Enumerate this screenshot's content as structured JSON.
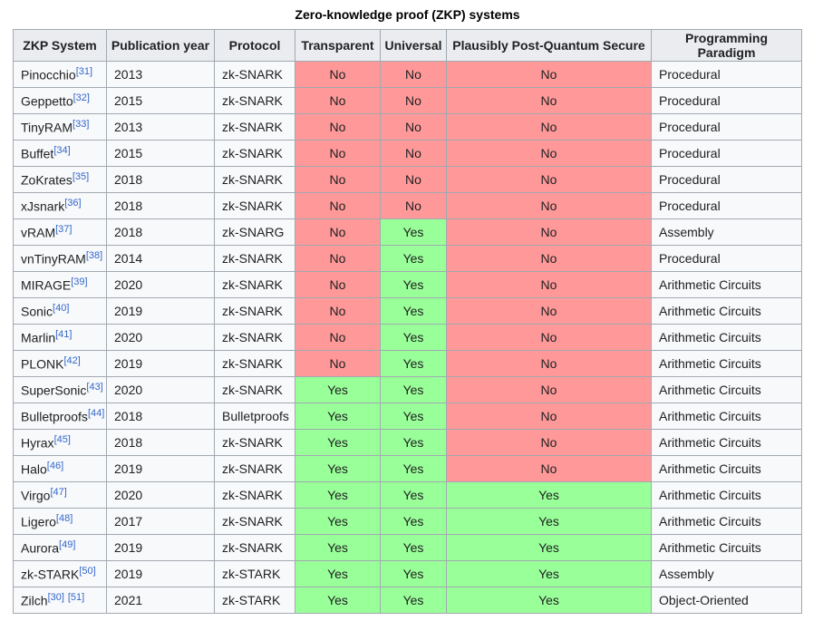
{
  "table": {
    "caption": "Zero-knowledge proof (ZKP) systems",
    "columns": [
      "ZKP System",
      "Publication year",
      "Protocol",
      "Transparent",
      "Universal",
      "Plausibly Post-Quantum Secure",
      "Programming Paradigm"
    ],
    "colors": {
      "yes_bg": "#99FF99",
      "no_bg": "#FF9999",
      "header_bg": "#eaecf0",
      "border": "#a2a9b1",
      "row_bg": "#f8f9fa",
      "link": "#3366cc",
      "text": "#202122"
    },
    "rows": [
      {
        "system": "Pinocchio",
        "refs": [
          "[31]"
        ],
        "year": "2013",
        "protocol": "zk-SNARK",
        "transparent": "No",
        "universal": "No",
        "post_quantum": "No",
        "paradigm": "Procedural"
      },
      {
        "system": "Geppetto",
        "refs": [
          "[32]"
        ],
        "year": "2015",
        "protocol": "zk-SNARK",
        "transparent": "No",
        "universal": "No",
        "post_quantum": "No",
        "paradigm": "Procedural"
      },
      {
        "system": "TinyRAM",
        "refs": [
          "[33]"
        ],
        "year": "2013",
        "protocol": "zk-SNARK",
        "transparent": "No",
        "universal": "No",
        "post_quantum": "No",
        "paradigm": "Procedural"
      },
      {
        "system": "Buffet",
        "refs": [
          "[34]"
        ],
        "year": "2015",
        "protocol": "zk-SNARK",
        "transparent": "No",
        "universal": "No",
        "post_quantum": "No",
        "paradigm": "Procedural"
      },
      {
        "system": "ZoKrates",
        "refs": [
          "[35]"
        ],
        "year": "2018",
        "protocol": "zk-SNARK",
        "transparent": "No",
        "universal": "No",
        "post_quantum": "No",
        "paradigm": "Procedural"
      },
      {
        "system": "xJsnark",
        "refs": [
          "[36]"
        ],
        "year": "2018",
        "protocol": "zk-SNARK",
        "transparent": "No",
        "universal": "No",
        "post_quantum": "No",
        "paradigm": "Procedural"
      },
      {
        "system": "vRAM",
        "refs": [
          "[37]"
        ],
        "year": "2018",
        "protocol": "zk-SNARG",
        "transparent": "No",
        "universal": "Yes",
        "post_quantum": "No",
        "paradigm": "Assembly"
      },
      {
        "system": "vnTinyRAM",
        "refs": [
          "[38]"
        ],
        "year": "2014",
        "protocol": "zk-SNARK",
        "transparent": "No",
        "universal": "Yes",
        "post_quantum": "No",
        "paradigm": "Procedural"
      },
      {
        "system": "MIRAGE",
        "refs": [
          "[39]"
        ],
        "year": "2020",
        "protocol": "zk-SNARK",
        "transparent": "No",
        "universal": "Yes",
        "post_quantum": "No",
        "paradigm": "Arithmetic Circuits"
      },
      {
        "system": "Sonic",
        "refs": [
          "[40]"
        ],
        "year": "2019",
        "protocol": "zk-SNARK",
        "transparent": "No",
        "universal": "Yes",
        "post_quantum": "No",
        "paradigm": "Arithmetic Circuits"
      },
      {
        "system": "Marlin",
        "refs": [
          "[41]"
        ],
        "year": "2020",
        "protocol": "zk-SNARK",
        "transparent": "No",
        "universal": "Yes",
        "post_quantum": "No",
        "paradigm": "Arithmetic Circuits"
      },
      {
        "system": "PLONK",
        "refs": [
          "[42]"
        ],
        "year": "2019",
        "protocol": "zk-SNARK",
        "transparent": "No",
        "universal": "Yes",
        "post_quantum": "No",
        "paradigm": "Arithmetic Circuits"
      },
      {
        "system": "SuperSonic",
        "refs": [
          "[43]"
        ],
        "year": "2020",
        "protocol": "zk-SNARK",
        "transparent": "Yes",
        "universal": "Yes",
        "post_quantum": "No",
        "paradigm": "Arithmetic Circuits"
      },
      {
        "system": "Bulletproofs",
        "refs": [
          "[44]"
        ],
        "year": "2018",
        "protocol": "Bulletproofs",
        "transparent": "Yes",
        "universal": "Yes",
        "post_quantum": "No",
        "paradigm": "Arithmetic Circuits"
      },
      {
        "system": "Hyrax",
        "refs": [
          "[45]"
        ],
        "year": "2018",
        "protocol": "zk-SNARK",
        "transparent": "Yes",
        "universal": "Yes",
        "post_quantum": "No",
        "paradigm": "Arithmetic Circuits"
      },
      {
        "system": "Halo",
        "refs": [
          "[46]"
        ],
        "year": "2019",
        "protocol": "zk-SNARK",
        "transparent": "Yes",
        "universal": "Yes",
        "post_quantum": "No",
        "paradigm": "Arithmetic Circuits"
      },
      {
        "system": "Virgo",
        "refs": [
          "[47]"
        ],
        "year": "2020",
        "protocol": "zk-SNARK",
        "transparent": "Yes",
        "universal": "Yes",
        "post_quantum": "Yes",
        "paradigm": "Arithmetic Circuits"
      },
      {
        "system": "Ligero",
        "refs": [
          "[48]"
        ],
        "year": "2017",
        "protocol": "zk-SNARK",
        "transparent": "Yes",
        "universal": "Yes",
        "post_quantum": "Yes",
        "paradigm": "Arithmetic Circuits"
      },
      {
        "system": "Aurora",
        "refs": [
          "[49]"
        ],
        "year": "2019",
        "protocol": "zk-SNARK",
        "transparent": "Yes",
        "universal": "Yes",
        "post_quantum": "Yes",
        "paradigm": "Arithmetic Circuits"
      },
      {
        "system": "zk-STARK",
        "refs": [
          "[50]"
        ],
        "year": "2019",
        "protocol": "zk-STARK",
        "transparent": "Yes",
        "universal": "Yes",
        "post_quantum": "Yes",
        "paradigm": "Assembly"
      },
      {
        "system": "Zilch",
        "refs": [
          "[30]",
          "[51]"
        ],
        "year": "2021",
        "protocol": "zk-STARK",
        "transparent": "Yes",
        "universal": "Yes",
        "post_quantum": "Yes",
        "paradigm": "Object-Oriented"
      }
    ]
  }
}
